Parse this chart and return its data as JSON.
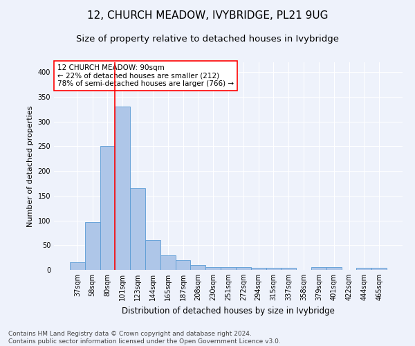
{
  "title": "12, CHURCH MEADOW, IVYBRIDGE, PL21 9UG",
  "subtitle": "Size of property relative to detached houses in Ivybridge",
  "xlabel": "Distribution of detached houses by size in Ivybridge",
  "ylabel": "Number of detached properties",
  "categories": [
    "37sqm",
    "58sqm",
    "80sqm",
    "101sqm",
    "123sqm",
    "144sqm",
    "165sqm",
    "187sqm",
    "208sqm",
    "230sqm",
    "251sqm",
    "272sqm",
    "294sqm",
    "315sqm",
    "337sqm",
    "358sqm",
    "379sqm",
    "401sqm",
    "422sqm",
    "444sqm",
    "465sqm"
  ],
  "values": [
    15,
    97,
    250,
    330,
    165,
    60,
    29,
    19,
    10,
    6,
    5,
    5,
    4,
    4,
    4,
    0,
    5,
    5,
    0,
    4,
    4
  ],
  "bar_color": "#aec6e8",
  "bar_edge_color": "#5a9bd5",
  "red_line_x": 2.5,
  "annotation_text": "12 CHURCH MEADOW: 90sqm\n← 22% of detached houses are smaller (212)\n78% of semi-detached houses are larger (766) →",
  "annotation_box_color": "white",
  "annotation_box_edge": "red",
  "ylim": [
    0,
    420
  ],
  "yticks": [
    0,
    50,
    100,
    150,
    200,
    250,
    300,
    350,
    400
  ],
  "footer_text": "Contains HM Land Registry data © Crown copyright and database right 2024.\nContains public sector information licensed under the Open Government Licence v3.0.",
  "background_color": "#eef2fb",
  "grid_color": "white",
  "title_fontsize": 11,
  "subtitle_fontsize": 9.5,
  "axis_label_fontsize": 8,
  "tick_fontsize": 7,
  "footer_fontsize": 6.5,
  "annotation_fontsize": 7.5
}
